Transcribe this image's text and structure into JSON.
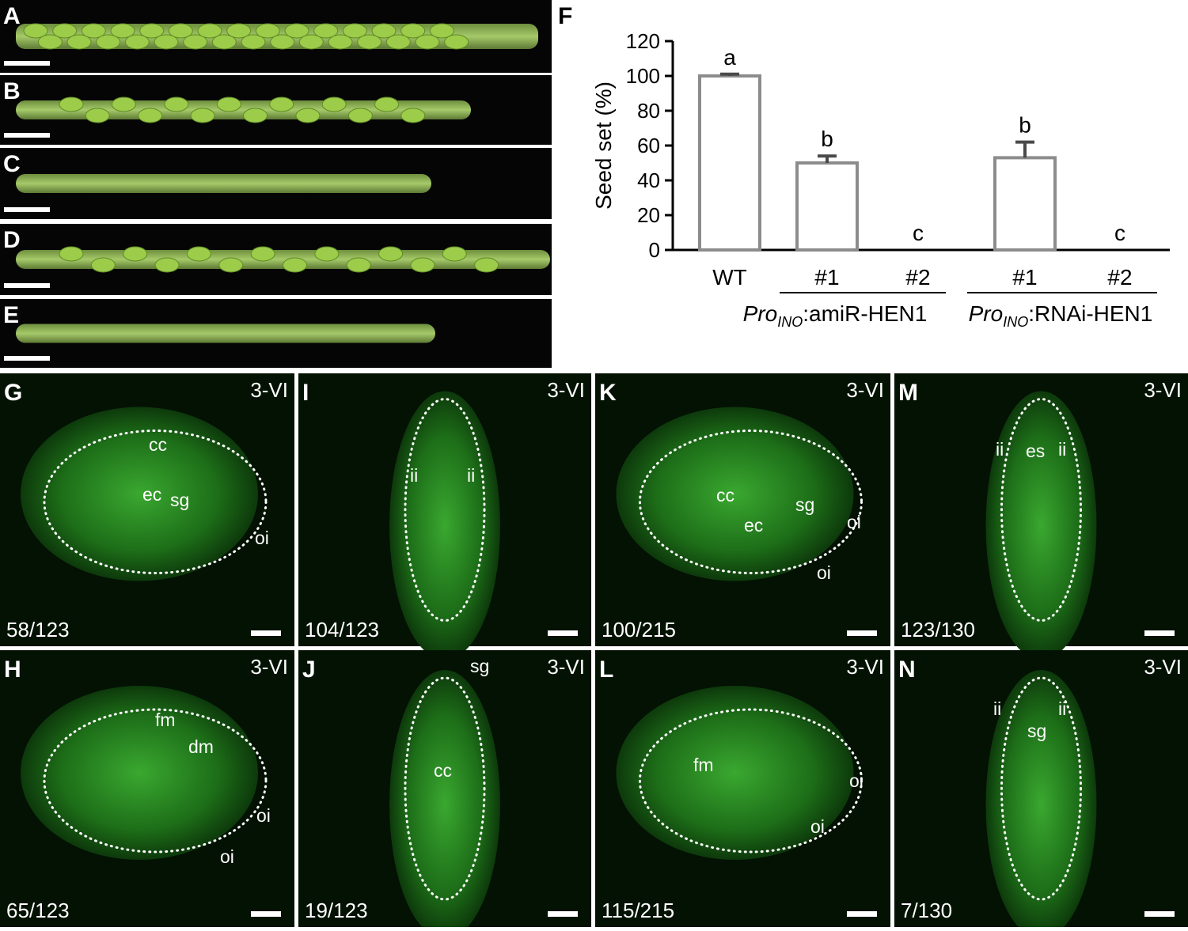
{
  "photo_panels": [
    {
      "letter": "A"
    },
    {
      "letter": "B"
    },
    {
      "letter": "C"
    },
    {
      "letter": "D"
    },
    {
      "letter": "E"
    }
  ],
  "micro_panels": [
    {
      "letter": "G",
      "stage": "3-VI",
      "count": "58/123",
      "labels": [
        "cc",
        "ec",
        "sg",
        "oi"
      ]
    },
    {
      "letter": "I",
      "stage": "3-VI",
      "count": "104/123",
      "labels": [
        "ii",
        "ii"
      ]
    },
    {
      "letter": "K",
      "stage": "3-VI",
      "count": "100/215",
      "labels": [
        "cc",
        "ec",
        "sg",
        "oi",
        "oi"
      ]
    },
    {
      "letter": "M",
      "stage": "3-VI",
      "count": "123/130",
      "labels": [
        "ii",
        "es",
        "ii"
      ]
    },
    {
      "letter": "H",
      "stage": "3-VI",
      "count": "65/123",
      "labels": [
        "fm",
        "dm",
        "oi",
        "oi"
      ]
    },
    {
      "letter": "J",
      "stage": "3-VI",
      "count": "19/123",
      "labels": [
        "sg",
        "cc"
      ]
    },
    {
      "letter": "L",
      "stage": "3-VI",
      "count": "115/215",
      "labels": [
        "oi",
        "oi",
        "fm"
      ]
    },
    {
      "letter": "N",
      "stage": "3-VI",
      "count": "7/130",
      "labels": [
        "ii",
        "sg",
        "ii"
      ]
    }
  ],
  "chart_data": {
    "type": "bar",
    "panel_letter": "F",
    "ylabel": "Seed set (%)",
    "categories": [
      "WT",
      "#1",
      "#2",
      "#1",
      "#2"
    ],
    "series": [
      {
        "color": "#8c8c8c",
        "values": [
          100,
          50,
          0,
          53,
          0
        ],
        "errors": [
          1,
          4,
          0,
          9,
          0
        ],
        "annotations": [
          "a",
          "b",
          "c",
          "b",
          "c"
        ]
      }
    ],
    "groups": [
      {
        "italic": "Pro",
        "subscript": "INO",
        "text": ":amiR-HEN1"
      },
      {
        "italic": "Pro",
        "subscript": "INO",
        "text": ":RNAi-HEN1"
      }
    ],
    "ylim": [
      0,
      120
    ],
    "yticks": [
      0,
      20,
      40,
      60,
      80,
      100,
      120
    ]
  }
}
